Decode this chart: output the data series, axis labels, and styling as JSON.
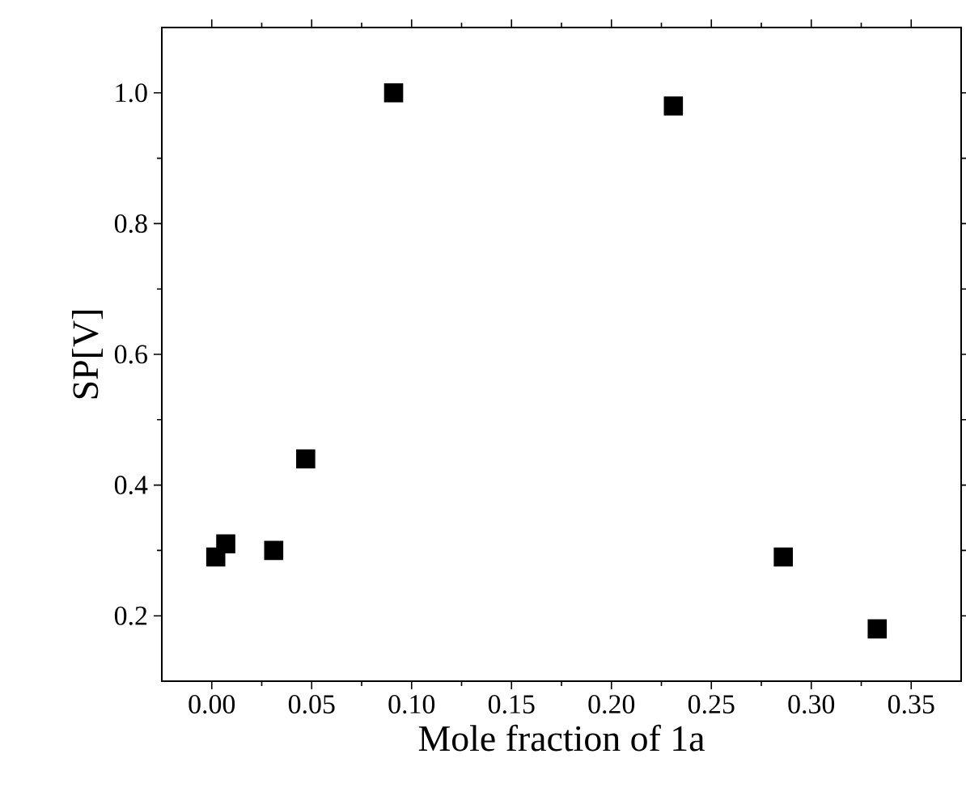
{
  "chart_data": {
    "type": "scatter",
    "xlabel": "Mole fraction of 1a",
    "ylabel": "SP[V]",
    "x": [
      0.002,
      0.007,
      0.031,
      0.047,
      0.091,
      0.231,
      0.286,
      0.333
    ],
    "values": [
      0.29,
      0.31,
      0.3,
      0.44,
      1.0,
      0.98,
      0.29,
      0.18
    ],
    "color": "#000000",
    "marker": "square",
    "xlim": [
      -0.025,
      0.375
    ],
    "ylim": [
      0.1,
      1.1
    ],
    "xticks": [
      {
        "value": 0,
        "label": "0.00"
      },
      0.05,
      {
        "value": 0.1,
        "label": "0.10"
      },
      0.15,
      {
        "value": 0.2,
        "label": "0.20"
      },
      0.25,
      {
        "value": 0.3,
        "label": "0.30"
      },
      0.35
    ],
    "yticks": [
      0.2,
      0.4,
      0.6,
      0.8,
      {
        "value": 1,
        "label": "1.0"
      }
    ]
  }
}
